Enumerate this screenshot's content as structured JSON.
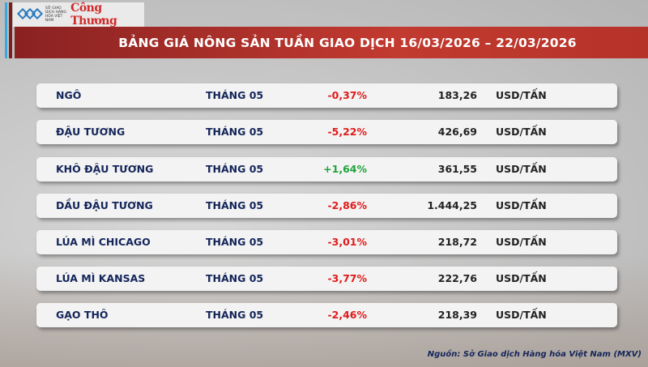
{
  "logo": {
    "exchange": "SỞ GIAO DỊCH HÀNG HÓA VIỆT NAM",
    "publisher": "Công Thương"
  },
  "title": "BẢNG GIÁ NÔNG SẢN TUẦN GIAO DỊCH 16/03/2026 – 22/03/2026",
  "colors": {
    "negative": "#e01b1b",
    "positive": "#1fa43a",
    "banner": "#b63329",
    "text": "#14255a"
  },
  "rows": [
    {
      "name": "NGÔ",
      "month": "THÁNG 05",
      "change": "-0,37%",
      "price": "183,26",
      "unit": "USD/TẤN",
      "dir": "neg"
    },
    {
      "name": "ĐẬU TƯƠNG",
      "month": "THÁNG 05",
      "change": "-5,22%",
      "price": "426,69",
      "unit": "USD/TẤN",
      "dir": "neg"
    },
    {
      "name": "KHÔ ĐẬU TƯƠNG",
      "month": "THÁNG 05",
      "change": "+1,64%",
      "price": "361,55",
      "unit": "USD/TẤN",
      "dir": "pos"
    },
    {
      "name": "DẦU ĐẬU TƯƠNG",
      "month": "THÁNG 05",
      "change": "-2,86%",
      "price": "1.444,25",
      "unit": "USD/TẤN",
      "dir": "neg"
    },
    {
      "name": "LÚA MÌ CHICAGO",
      "month": "THÁNG 05",
      "change": "-3,01%",
      "price": "218,72",
      "unit": "USD/TẤN",
      "dir": "neg"
    },
    {
      "name": "LÚA MÌ KANSAS",
      "month": "THÁNG 05",
      "change": "-3,77%",
      "price": "222,76",
      "unit": "USD/TẤN",
      "dir": "neg"
    },
    {
      "name": "GẠO THÔ",
      "month": "THÁNG 05",
      "change": "-2,46%",
      "price": "218,39",
      "unit": "USD/TẤN",
      "dir": "neg"
    }
  ],
  "source": "Nguồn: Sở Giao dịch Hàng hóa Việt Nam (MXV)"
}
